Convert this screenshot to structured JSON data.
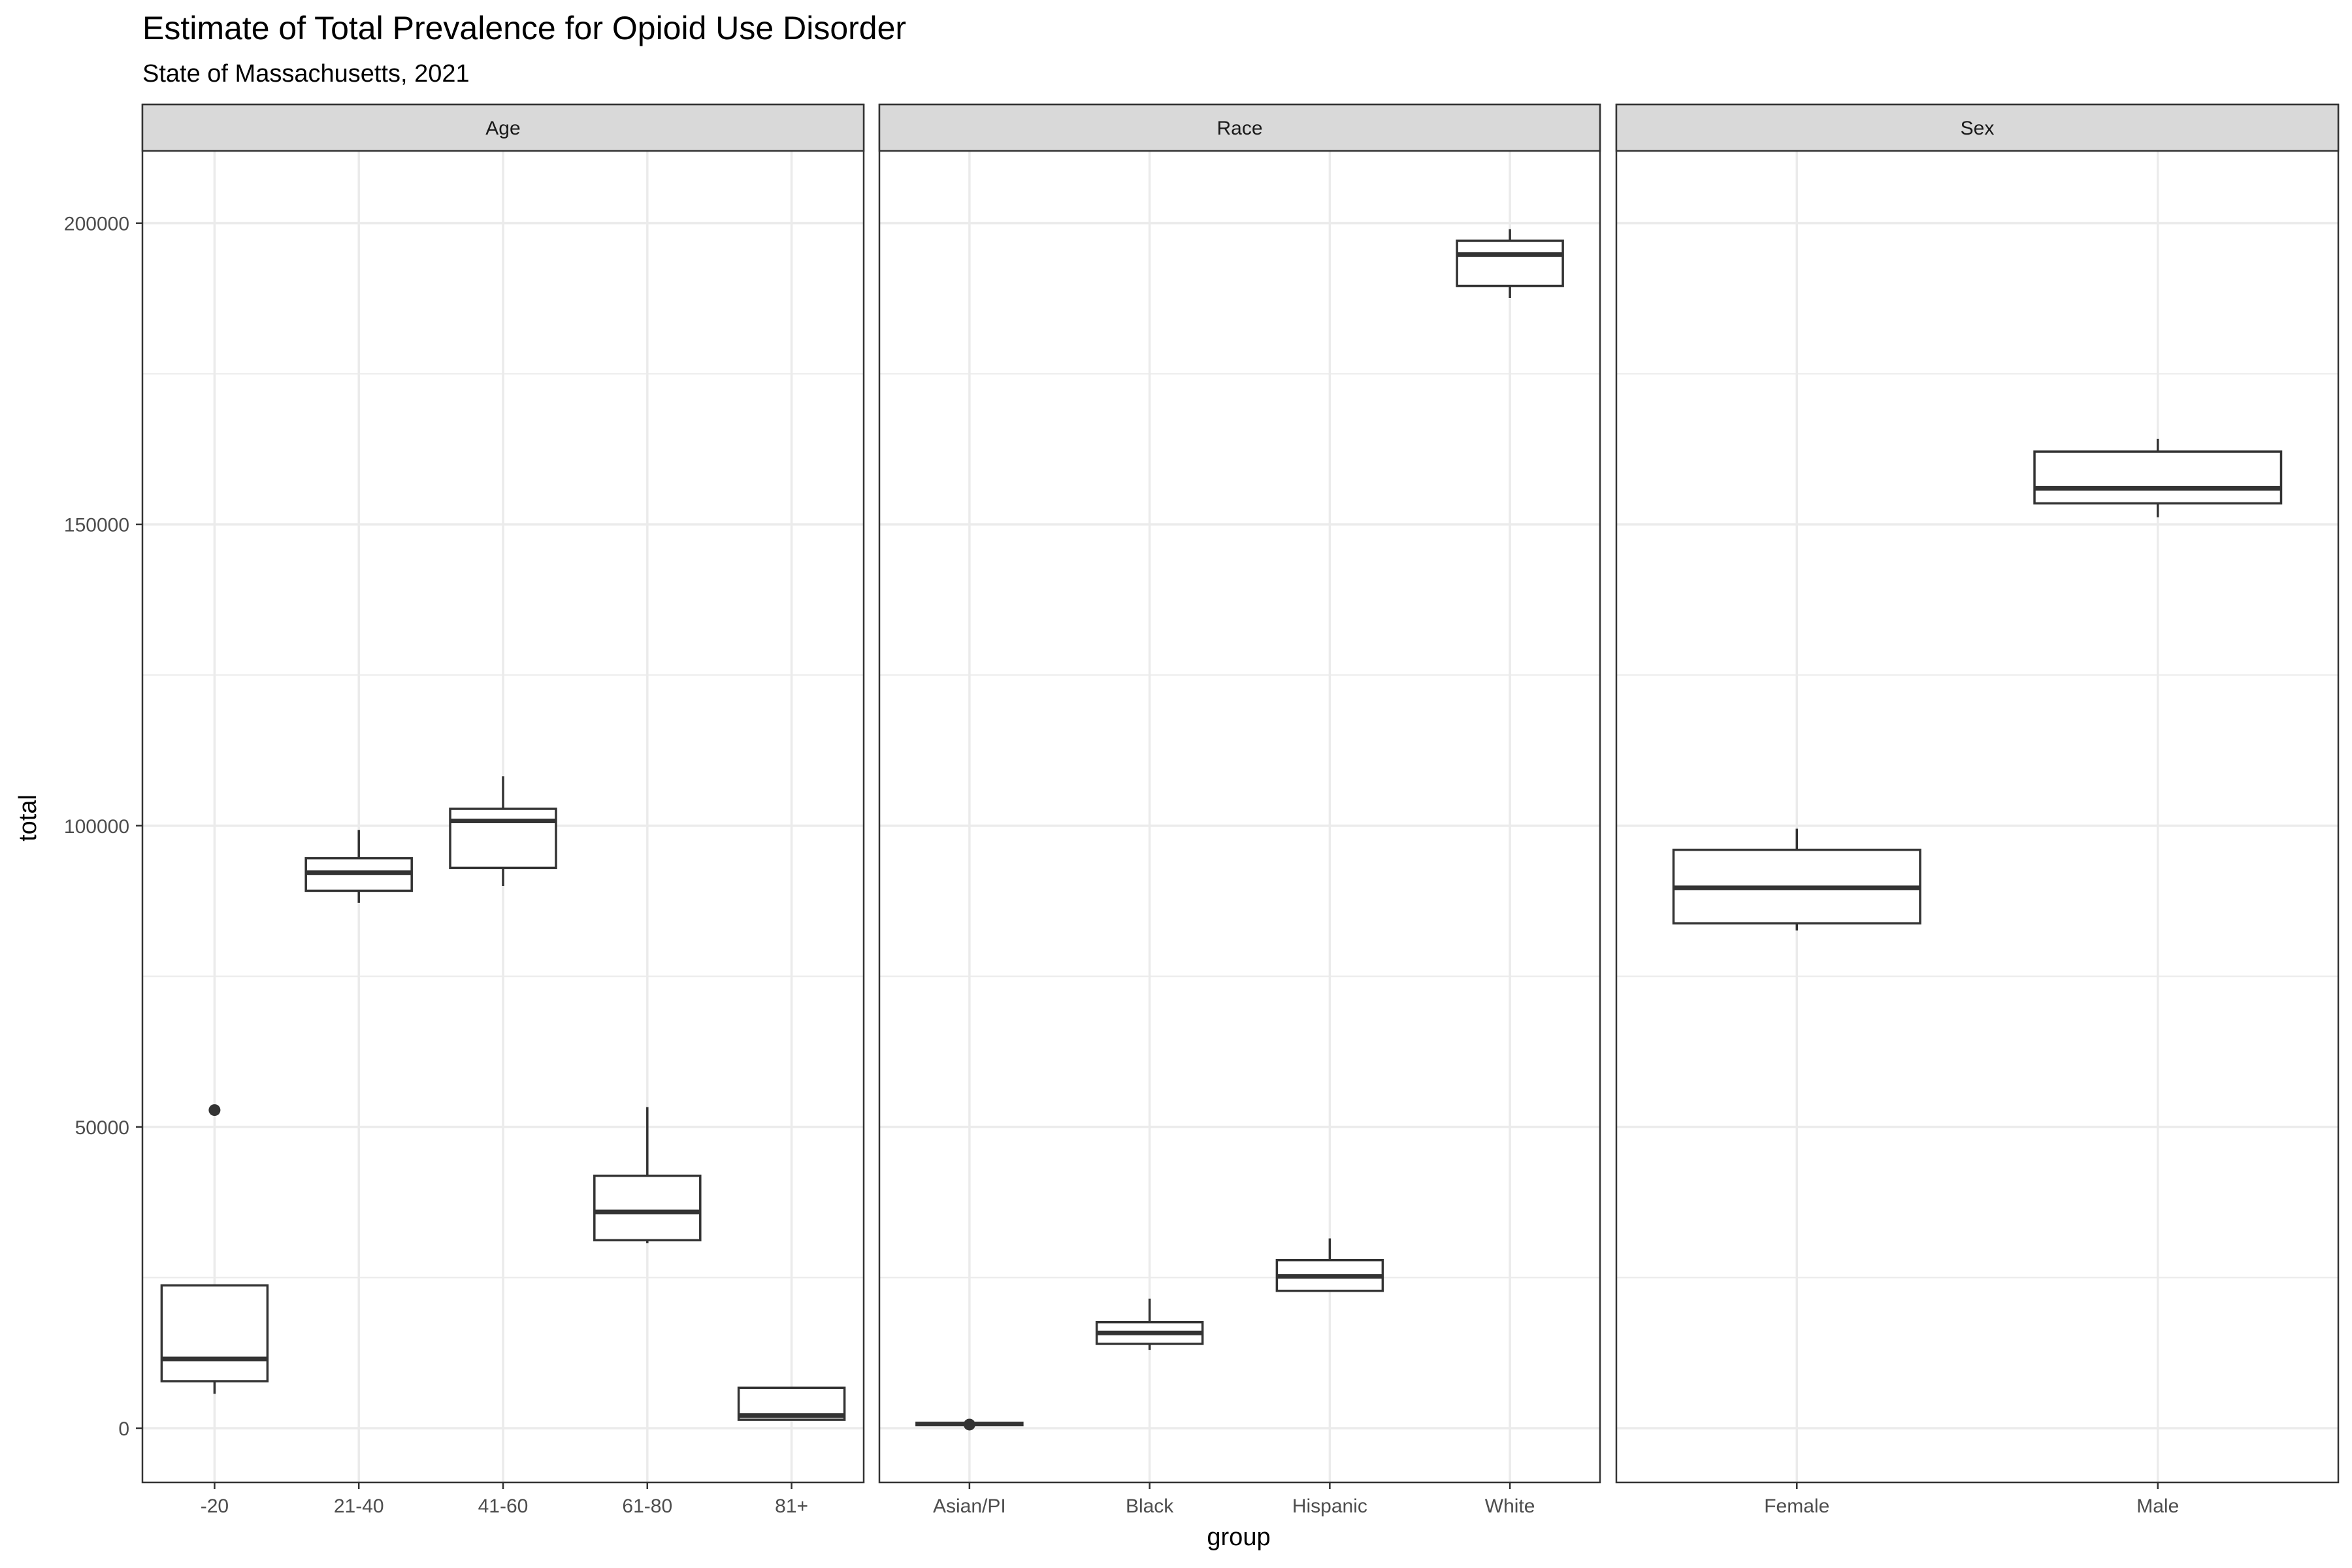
{
  "chart_data": {
    "type": "boxplot",
    "title": "Estimate of Total Prevalence for Opioid Use Disorder",
    "subtitle": "State of Massachusetts, 2021",
    "xlabel": "group",
    "ylabel": "total",
    "ylim": [
      -9000,
      212000
    ],
    "y_ticks": [
      0,
      50000,
      100000,
      150000,
      200000
    ],
    "y_tick_labels": [
      "0",
      "50000",
      "100000",
      "150000",
      "200000"
    ],
    "y_minor_ticks": [
      25000,
      75000,
      125000,
      175000
    ],
    "grid": true,
    "colors": {
      "box_stroke": "#333333",
      "grid": "#ebebeb",
      "strip_fill": "#d9d9d9",
      "panel_border": "#333333",
      "box_fill": "#ffffff"
    },
    "panels": [
      {
        "strip": "Age",
        "categories": [
          "-20",
          "21-40",
          "41-60",
          "61-80",
          "81+"
        ],
        "boxes": [
          {
            "category": "-20",
            "whisker_low": 5700,
            "q1": 7800,
            "median": 11500,
            "q3": 23700,
            "whisker_high": 23700,
            "outliers": [
              52800
            ]
          },
          {
            "category": "21-40",
            "whisker_low": 87200,
            "q1": 89200,
            "median": 92200,
            "q3": 94600,
            "whisker_high": 99300,
            "outliers": []
          },
          {
            "category": "41-60",
            "whisker_low": 90000,
            "q1": 93000,
            "median": 100800,
            "q3": 102800,
            "whisker_high": 108200,
            "outliers": []
          },
          {
            "category": "61-80",
            "whisker_low": 30700,
            "q1": 31200,
            "median": 35900,
            "q3": 41900,
            "whisker_high": 53300,
            "outliers": []
          },
          {
            "category": "81+",
            "whisker_low": 1300,
            "q1": 1400,
            "median": 2100,
            "q3": 6700,
            "whisker_high": 6700,
            "outliers": []
          }
        ]
      },
      {
        "strip": "Race",
        "categories": [
          "Asian/PI",
          "Black",
          "Hispanic",
          "White"
        ],
        "boxes": [
          {
            "category": "Asian/PI",
            "whisker_low": 300,
            "q1": 500,
            "median": 700,
            "q3": 900,
            "whisker_high": 900,
            "outliers": [
              600
            ]
          },
          {
            "category": "Black",
            "whisker_low": 13000,
            "q1": 14000,
            "median": 15800,
            "q3": 17600,
            "whisker_high": 21500,
            "outliers": []
          },
          {
            "category": "Hispanic",
            "whisker_low": 22700,
            "q1": 22800,
            "median": 25200,
            "q3": 27900,
            "whisker_high": 31500,
            "outliers": []
          },
          {
            "category": "White",
            "whisker_low": 187600,
            "q1": 189600,
            "median": 194800,
            "q3": 197100,
            "whisker_high": 199000,
            "outliers": []
          }
        ]
      },
      {
        "strip": "Sex",
        "categories": [
          "Female",
          "Male"
        ],
        "boxes": [
          {
            "category": "Female",
            "whisker_low": 82600,
            "q1": 83800,
            "median": 89700,
            "q3": 96000,
            "whisker_high": 99500,
            "outliers": []
          },
          {
            "category": "Male",
            "whisker_low": 151200,
            "q1": 153500,
            "median": 156000,
            "q3": 162100,
            "whisker_high": 164200,
            "outliers": []
          }
        ]
      }
    ]
  }
}
